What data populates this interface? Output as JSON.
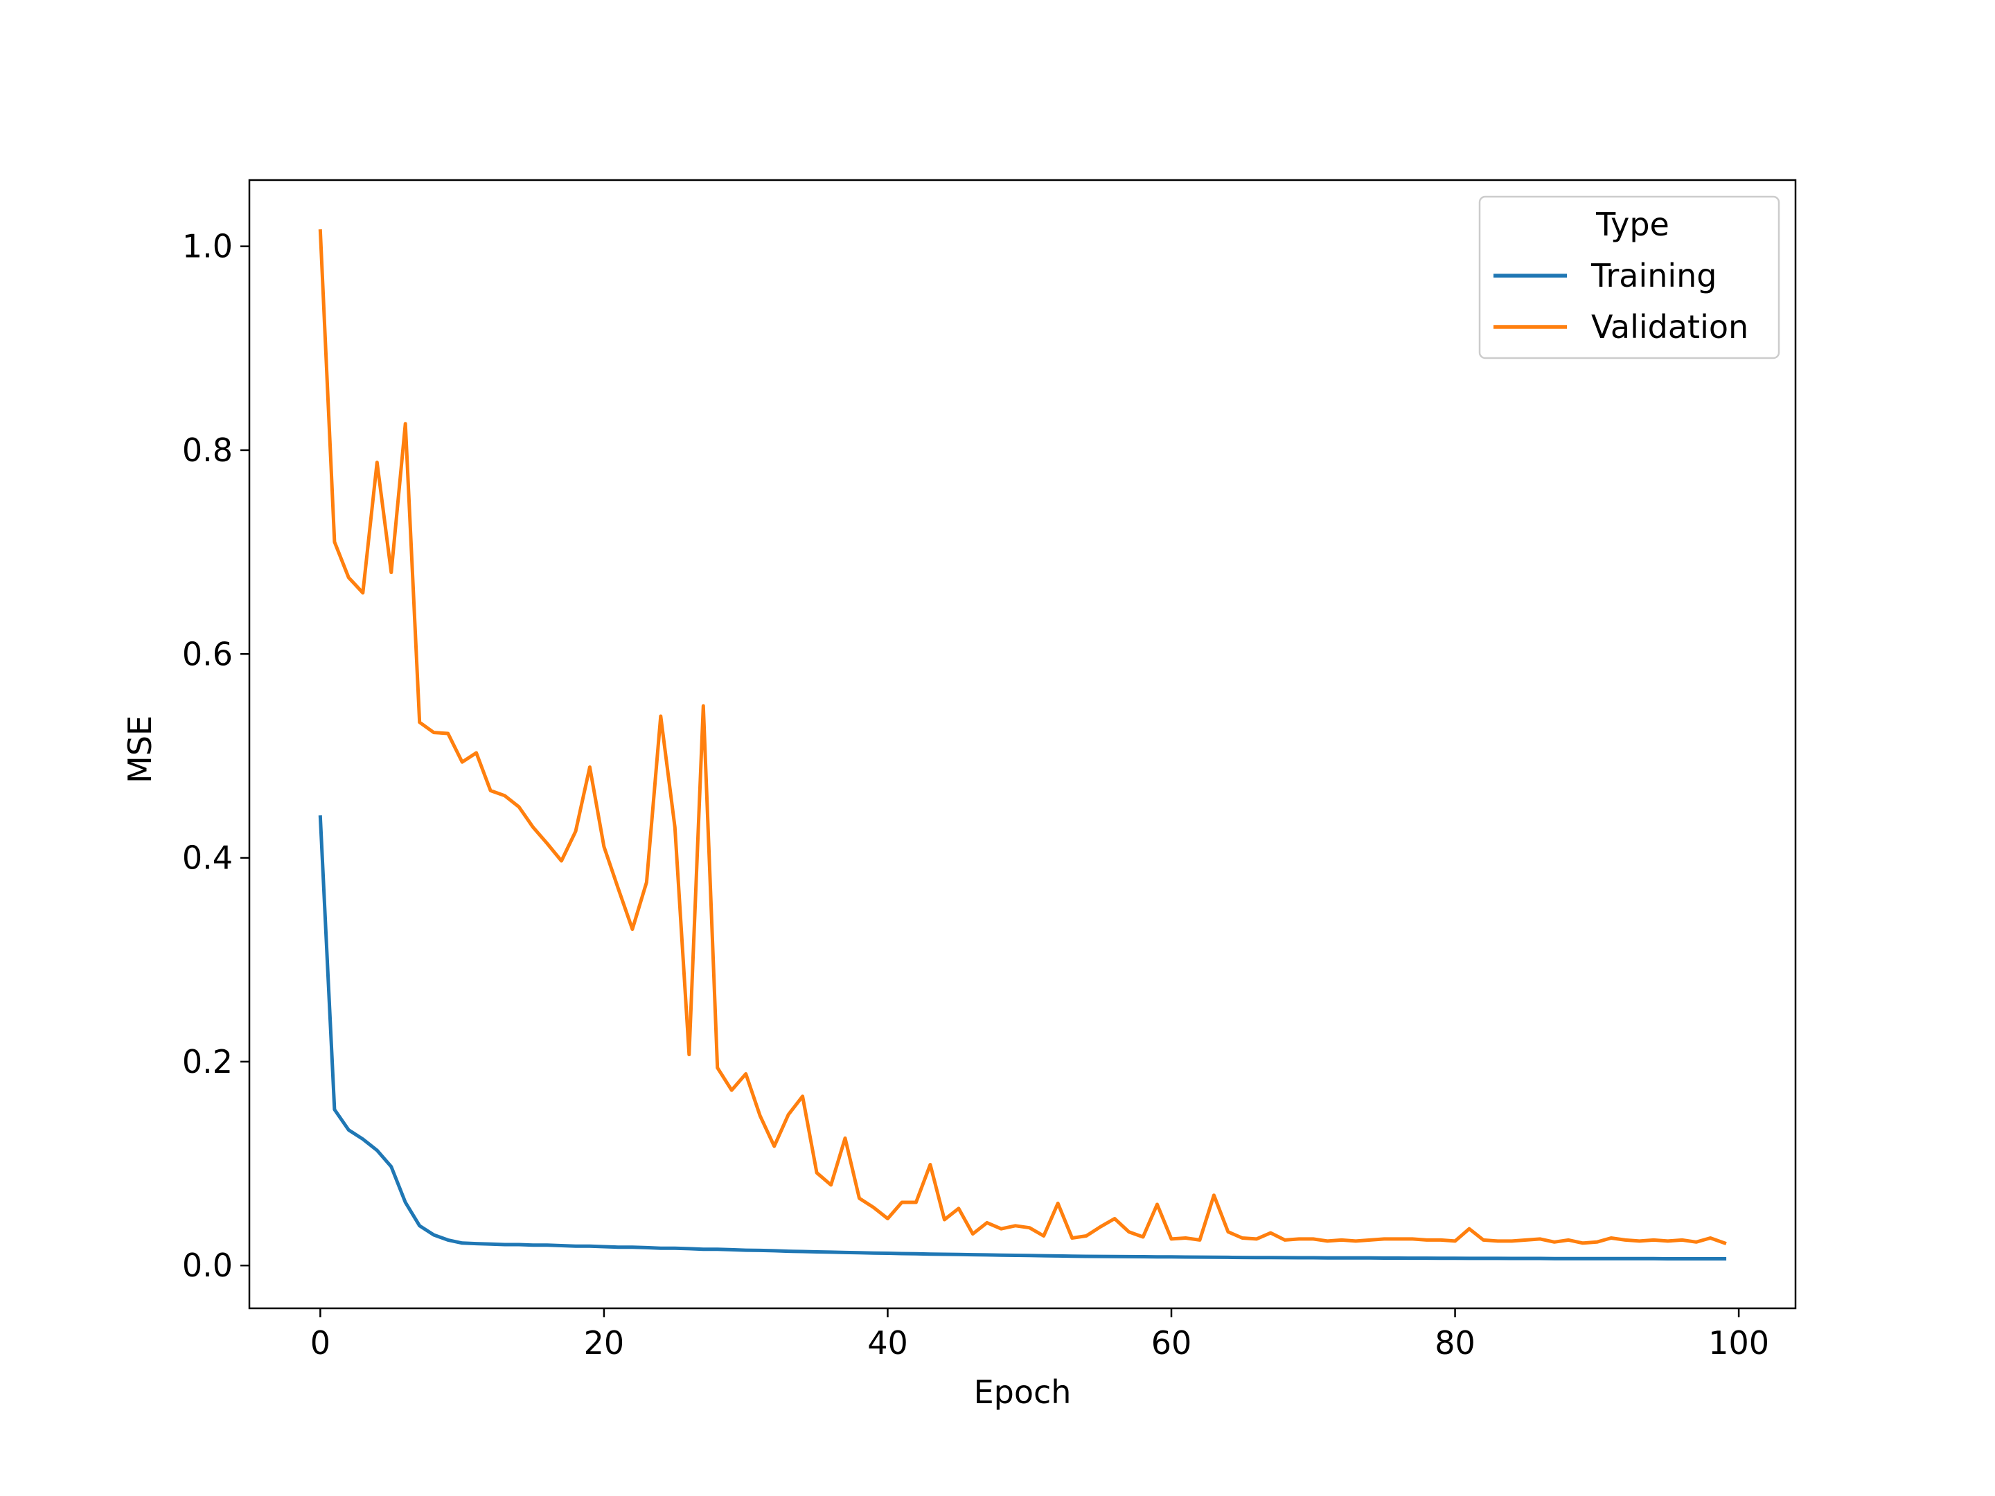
{
  "chart_data": {
    "type": "line",
    "title": "",
    "xlabel": "Epoch",
    "ylabel": "MSE",
    "xlim": [
      -5,
      104
    ],
    "ylim": [
      -0.042,
      1.065
    ],
    "xticks": [
      0,
      20,
      40,
      60,
      80,
      100
    ],
    "xtick_labels": [
      "0",
      "20",
      "40",
      "60",
      "80",
      "100"
    ],
    "yticks": [
      0.0,
      0.2,
      0.4,
      0.6,
      0.8,
      1.0
    ],
    "ytick_labels": [
      "0.0",
      "0.2",
      "0.4",
      "0.6",
      "0.8",
      "1.0"
    ],
    "grid": false,
    "legend": {
      "title": "Type",
      "placement": "top-right"
    },
    "series": [
      {
        "name": "Training",
        "color": "#1f77b4",
        "x": [
          0,
          1,
          2,
          3,
          4,
          5,
          6,
          7,
          8,
          9,
          10,
          11,
          12,
          13,
          14,
          15,
          16,
          17,
          18,
          19,
          20,
          21,
          22,
          23,
          24,
          25,
          26,
          27,
          28,
          29,
          30,
          31,
          32,
          33,
          34,
          35,
          36,
          37,
          38,
          39,
          40,
          41,
          42,
          43,
          44,
          45,
          46,
          47,
          48,
          49,
          50,
          51,
          52,
          53,
          54,
          55,
          56,
          57,
          58,
          59,
          60,
          61,
          62,
          63,
          64,
          65,
          66,
          67,
          68,
          69,
          70,
          71,
          72,
          73,
          74,
          75,
          76,
          77,
          78,
          79,
          80,
          81,
          82,
          83,
          84,
          85,
          86,
          87,
          88,
          89,
          90,
          91,
          92,
          93,
          94,
          95,
          96,
          97,
          98,
          99
        ],
        "y": [
          0.44,
          0.153,
          0.133,
          0.124,
          0.113,
          0.097,
          0.062,
          0.039,
          0.03,
          0.025,
          0.022,
          0.0215,
          0.021,
          0.0205,
          0.0205,
          0.02,
          0.02,
          0.0195,
          0.019,
          0.019,
          0.0185,
          0.018,
          0.018,
          0.0175,
          0.017,
          0.017,
          0.0165,
          0.016,
          0.016,
          0.0155,
          0.015,
          0.0148,
          0.0145,
          0.014,
          0.0137,
          0.0134,
          0.0131,
          0.0128,
          0.0125,
          0.0122,
          0.012,
          0.0117,
          0.0115,
          0.0112,
          0.011,
          0.0108,
          0.0106,
          0.0104,
          0.0102,
          0.01,
          0.0098,
          0.0096,
          0.0094,
          0.0092,
          0.009,
          0.0089,
          0.0088,
          0.0087,
          0.0086,
          0.0085,
          0.0084,
          0.0083,
          0.0082,
          0.0081,
          0.008,
          0.0079,
          0.0078,
          0.0078,
          0.0077,
          0.0076,
          0.0076,
          0.0075,
          0.0075,
          0.0074,
          0.0074,
          0.0073,
          0.0073,
          0.0072,
          0.0072,
          0.0071,
          0.0071,
          0.007,
          0.007,
          0.007,
          0.0069,
          0.0069,
          0.0069,
          0.0068,
          0.0068,
          0.0068,
          0.0068,
          0.0067,
          0.0067,
          0.0067,
          0.0067,
          0.0066,
          0.0066,
          0.0066,
          0.0066,
          0.0066
        ]
      },
      {
        "name": "Validation",
        "color": "#ff7f0e",
        "x": [
          0,
          1,
          2,
          3,
          4,
          5,
          6,
          7,
          8,
          9,
          10,
          11,
          12,
          13,
          14,
          15,
          16,
          17,
          18,
          19,
          20,
          21,
          22,
          23,
          24,
          25,
          26,
          27,
          28,
          29,
          30,
          31,
          32,
          33,
          34,
          35,
          36,
          37,
          38,
          39,
          40,
          41,
          42,
          43,
          44,
          45,
          46,
          47,
          48,
          49,
          50,
          51,
          52,
          53,
          54,
          55,
          56,
          57,
          58,
          59,
          60,
          61,
          62,
          63,
          64,
          65,
          66,
          67,
          68,
          69,
          70,
          71,
          72,
          73,
          74,
          75,
          76,
          77,
          78,
          79,
          80,
          81,
          82,
          83,
          84,
          85,
          86,
          87,
          88,
          89,
          90,
          91,
          92,
          93,
          94,
          95,
          96,
          97,
          98,
          99
        ],
        "y": [
          1.015,
          0.71,
          0.675,
          0.66,
          0.788,
          0.68,
          0.826,
          0.533,
          0.523,
          0.522,
          0.494,
          0.503,
          0.466,
          0.461,
          0.45,
          0.43,
          0.414,
          0.397,
          0.426,
          0.489,
          0.411,
          0.37,
          0.33,
          0.376,
          0.539,
          0.43,
          0.207,
          0.549,
          0.194,
          0.172,
          0.188,
          0.147,
          0.117,
          0.148,
          0.166,
          0.091,
          0.079,
          0.125,
          0.066,
          0.057,
          0.046,
          0.062,
          0.062,
          0.099,
          0.045,
          0.056,
          0.031,
          0.042,
          0.036,
          0.039,
          0.037,
          0.029,
          0.061,
          0.027,
          0.029,
          0.038,
          0.046,
          0.033,
          0.028,
          0.06,
          0.026,
          0.027,
          0.025,
          0.069,
          0.033,
          0.027,
          0.026,
          0.032,
          0.025,
          0.026,
          0.026,
          0.024,
          0.025,
          0.024,
          0.025,
          0.026,
          0.026,
          0.026,
          0.025,
          0.025,
          0.024,
          0.036,
          0.025,
          0.024,
          0.024,
          0.025,
          0.026,
          0.023,
          0.025,
          0.022,
          0.023,
          0.027,
          0.025,
          0.024,
          0.025,
          0.024,
          0.025,
          0.023,
          0.027,
          0.022
        ]
      }
    ]
  }
}
